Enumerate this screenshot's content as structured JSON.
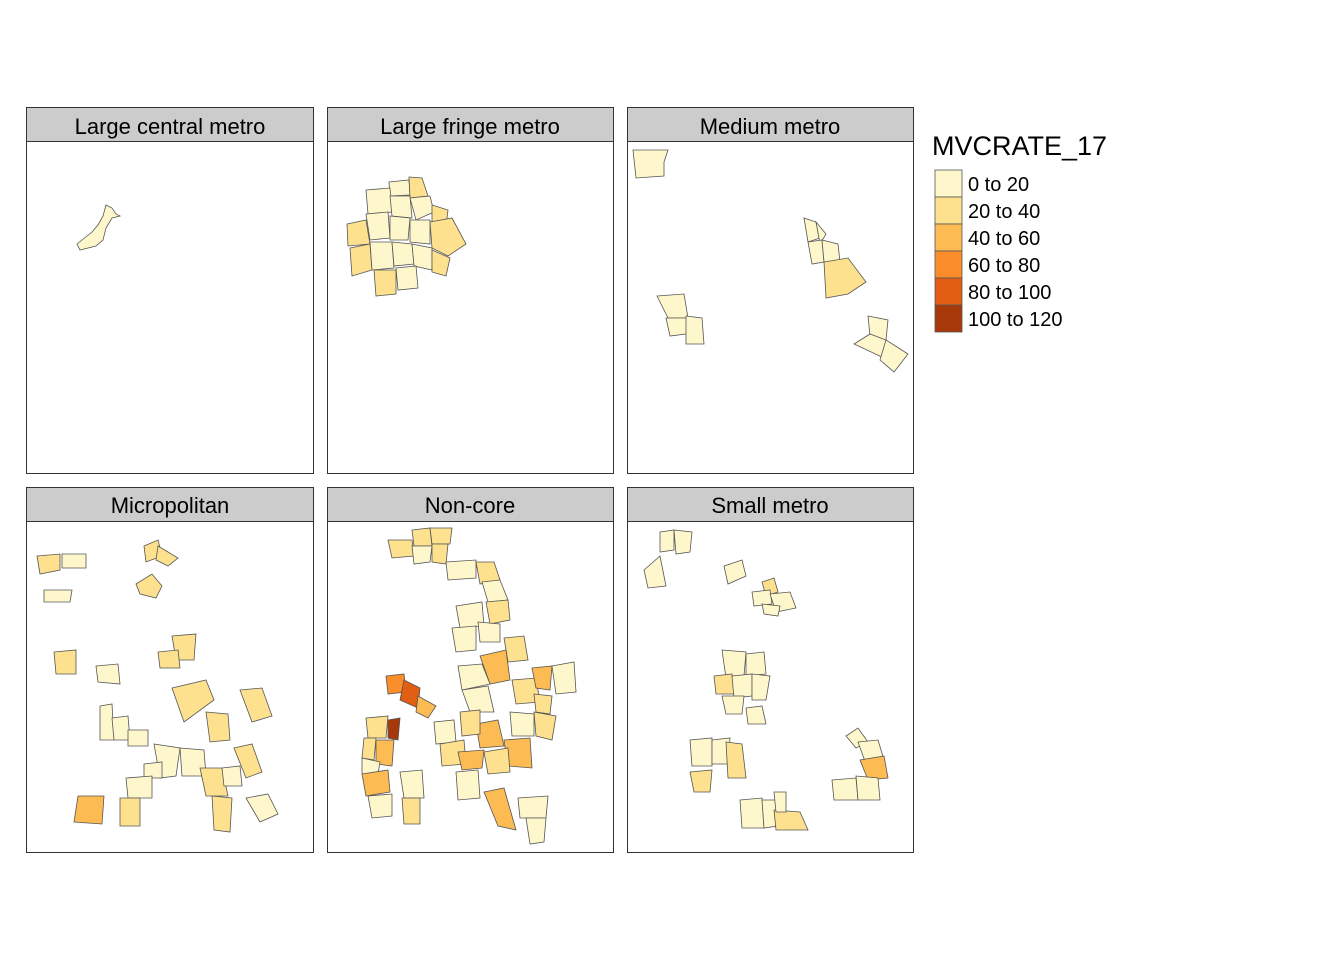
{
  "map": {
    "variable": "MVCRATE_17",
    "border_color": "#333333",
    "panel_header_color": "#cccccc",
    "panels": [
      {
        "title": "Large central metro"
      },
      {
        "title": "Large fringe metro"
      },
      {
        "title": "Medium metro"
      },
      {
        "title": "Micropolitan"
      },
      {
        "title": "Non-core"
      },
      {
        "title": "Small metro"
      }
    ]
  },
  "legend": {
    "title": "MVCRATE_17",
    "classes": [
      {
        "label": "0 to 20",
        "color": "#FFF7CC"
      },
      {
        "label": "20 to 40",
        "color": "#FDE18F"
      },
      {
        "label": "40 to 60",
        "color": "#FDBB53"
      },
      {
        "label": "60 to 80",
        "color": "#FB8E2B"
      },
      {
        "label": "80 to 100",
        "color": "#E25E12"
      },
      {
        "label": "100 to 120",
        "color": "#A6380A"
      }
    ]
  }
}
